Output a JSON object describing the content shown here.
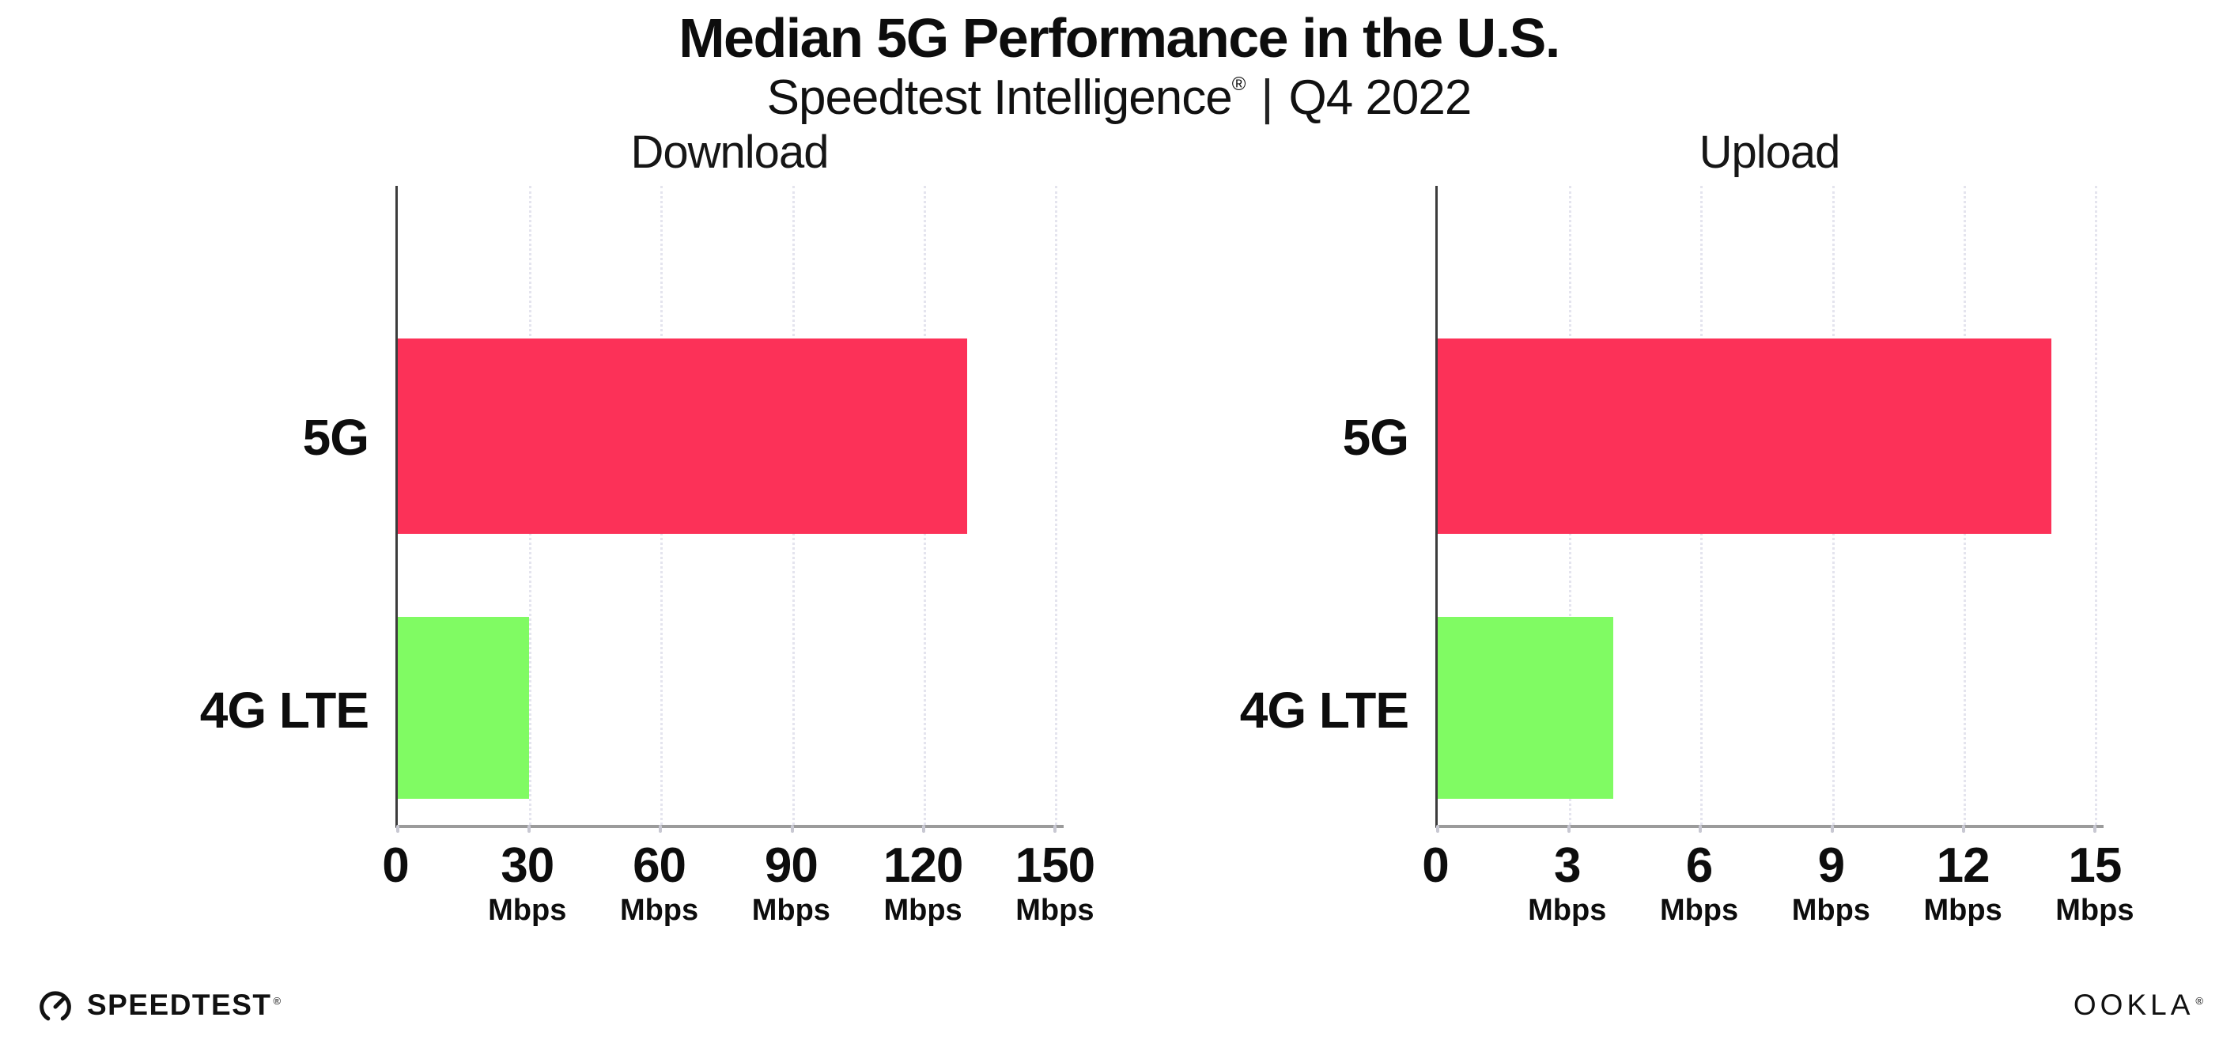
{
  "header": {
    "title": "Median 5G Performance in the U.S.",
    "subtitle_brand": "Speedtest Intelligence",
    "subtitle_reg": "®",
    "subtitle_separator": "|",
    "subtitle_period": "Q4 2022"
  },
  "footer": {
    "speedtest_label": "SPEEDTEST",
    "speedtest_reg": "®",
    "ookla_label": "OOKLA",
    "ookla_reg": "®"
  },
  "colors": {
    "bar_5g": "#fc3158",
    "bar_4g_lte": "#80fb63",
    "axis_bottom": "#9b9b9b",
    "spine_left": "#3c3c3c",
    "gridline": "#e4e4ee",
    "tick_mark": "#c8c8d2",
    "text": "#0d0d0d",
    "background": "#ffffff"
  },
  "chart_data": [
    {
      "type": "bar",
      "orientation": "horizontal",
      "title": "Download",
      "categories": [
        "5G",
        "4G LTE"
      ],
      "values": [
        130,
        30
      ],
      "unit": "Mbps",
      "xlim": [
        0,
        152
      ],
      "xticks": [
        0,
        30,
        60,
        90,
        120,
        150
      ],
      "grid": "vertical-dotted",
      "legend": "none",
      "bar_colors": [
        "#fc3158",
        "#80fb63"
      ]
    },
    {
      "type": "bar",
      "orientation": "horizontal",
      "title": "Upload",
      "categories": [
        "5G",
        "4G LTE"
      ],
      "values": [
        14,
        4
      ],
      "unit": "Mbps",
      "xlim": [
        0,
        15.2
      ],
      "xticks": [
        0,
        3,
        6,
        9,
        12,
        15
      ],
      "grid": "vertical-dotted",
      "legend": "none",
      "bar_colors": [
        "#fc3158",
        "#80fb63"
      ]
    }
  ]
}
